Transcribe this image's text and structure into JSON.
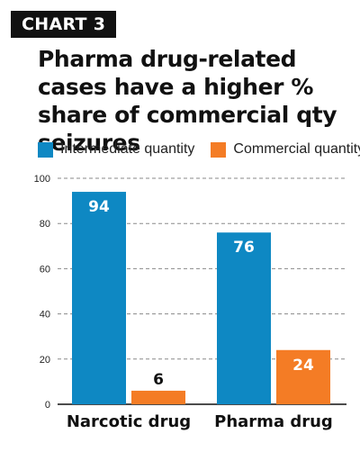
{
  "badge": "CHART 3",
  "colors": {
    "intermediate": "#0E88C3",
    "commercial": "#F47C25",
    "grid": "#8A8A8A",
    "axis": "#111111",
    "text": "#111111"
  },
  "legend": [
    {
      "label": "Intermediate quantity"
    },
    {
      "label": "Commercial quantity"
    }
  ],
  "chart_data": {
    "type": "bar",
    "title": "Pharma drug-related cases have a higher % share of commercial qty seizures",
    "categories": [
      "Narcotic drug",
      "Pharma drug"
    ],
    "series": [
      {
        "name": "Intermediate quantity",
        "values": [
          94,
          76
        ]
      },
      {
        "name": "Commercial quantity",
        "values": [
          6,
          24
        ]
      }
    ],
    "ylim": [
      0,
      100
    ],
    "yticks": [
      0,
      20,
      40,
      60,
      80,
      100
    ],
    "grid": true,
    "legend_position": "top-left",
    "data_labels": [
      [
        "94",
        "76"
      ],
      [
        "6",
        "24"
      ]
    ]
  }
}
